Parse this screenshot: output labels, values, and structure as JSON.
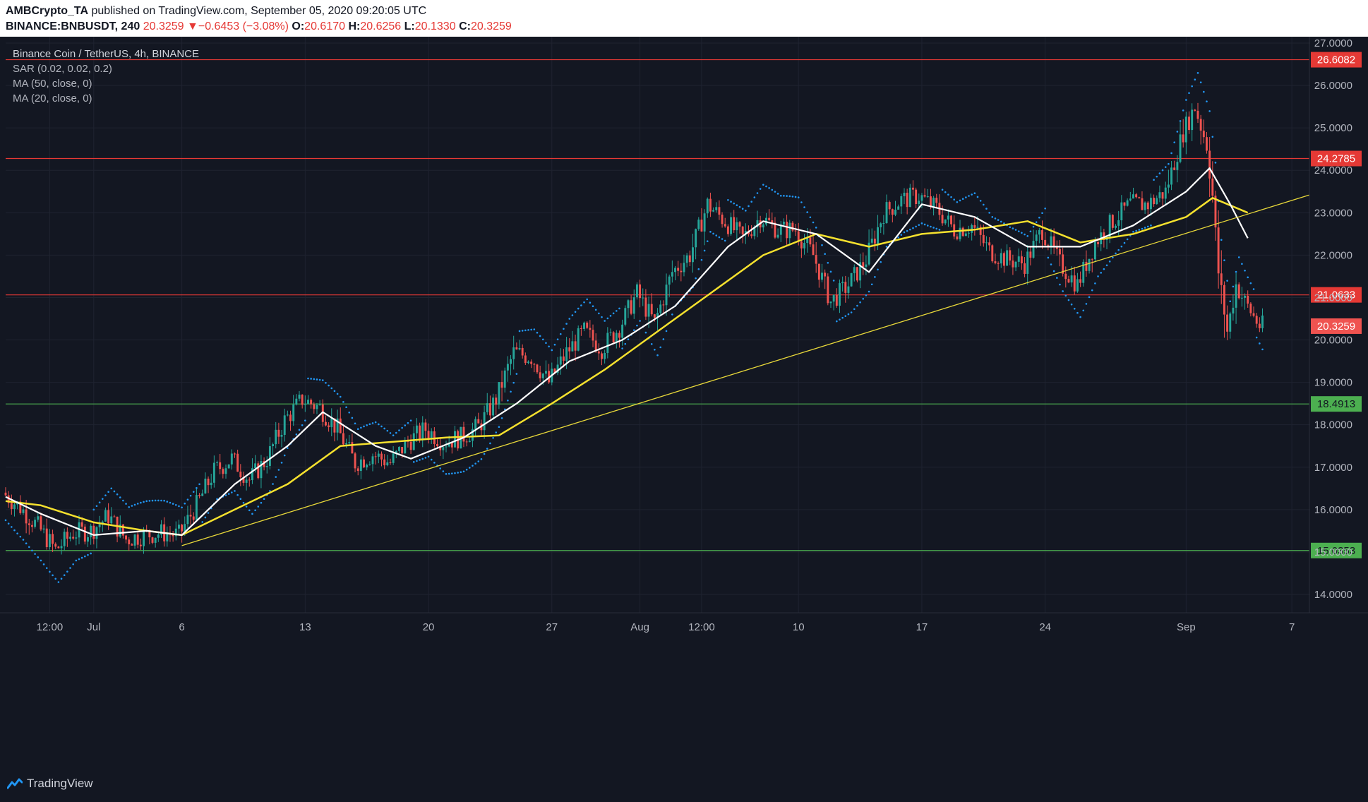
{
  "header": {
    "author": "AMBCrypto_TA",
    "published": " published on TradingView.com, September 05, 2020 09:20:05 UTC",
    "symbol": "BINANCE:BNBUSDT, 240",
    "last": "20.3259",
    "change_arrow": "▼",
    "change": "−0.6453 (−3.08%)",
    "o_label": "O:",
    "o_value": "20.6170",
    "h_label": "H:",
    "h_value": "20.6256",
    "l_label": "L:",
    "l_value": "20.1330",
    "c_label": "C:",
    "c_value": "20.3259"
  },
  "legend": {
    "title": "Binance Coin / TetherUS, 4h, BINANCE",
    "sar": "SAR (0.02, 0.02, 0.2)",
    "ma50": "MA (50, close, 0)",
    "ma20": "MA (20, close, 0)"
  },
  "footer": {
    "brand": "TradingView",
    "logo_icon": "tradingview-logo-icon"
  },
  "colors": {
    "background": "#131722",
    "grid": "#1f2330",
    "up": "#26a69a",
    "down": "#ef5350",
    "resistance": "#e53935",
    "support": "#4caf50",
    "ma50": "#f5e12e",
    "ma20": "#ffffff",
    "trendline": "#e8d83a",
    "sar": "#2196f3",
    "axis_text": "#b2b5be"
  },
  "chart_data": {
    "type": "candlestick",
    "title": "Binance Coin / TetherUS, 4h, BINANCE",
    "ylim": [
      13.7,
      27.35
    ],
    "y_ticks": [
      14,
      15,
      16,
      17,
      18,
      19,
      20,
      21,
      22,
      23,
      24,
      25,
      26,
      27
    ],
    "y_tick_labels": [
      "14.0000",
      "15.0000",
      "16.0000",
      "17.0000",
      "18.0000",
      "19.0000",
      "20.0000",
      "21.0000",
      "22.0000",
      "23.0000",
      "24.0000",
      "25.0000",
      "26.0000",
      "27.0000"
    ],
    "x_ticks": [
      {
        "label": "12:00",
        "date": "2020-06-28 12:00"
      },
      {
        "label": "Jul",
        "date": "2020-07-01"
      },
      {
        "label": "6",
        "date": "2020-07-06"
      },
      {
        "label": "13",
        "date": "2020-07-13"
      },
      {
        "label": "20",
        "date": "2020-07-20"
      },
      {
        "label": "27",
        "date": "2020-07-27"
      },
      {
        "label": "Aug",
        "date": "2020-08-01"
      },
      {
        "label": "12:00",
        "date": "2020-08-04 12:00"
      },
      {
        "label": "10",
        "date": "2020-08-10"
      },
      {
        "label": "17",
        "date": "2020-08-17"
      },
      {
        "label": "24",
        "date": "2020-08-24"
      },
      {
        "label": "Sep",
        "date": "2020-09-01"
      },
      {
        "label": "7",
        "date": "2020-09-07"
      }
    ],
    "horizontal_levels": [
      {
        "value": 26.6082,
        "label": "26.6082",
        "kind": "resistance"
      },
      {
        "value": 24.2785,
        "label": "24.2785",
        "kind": "resistance"
      },
      {
        "value": 21.0633,
        "label": "21.0633",
        "kind": "resistance"
      },
      {
        "value": 18.4913,
        "label": "18.4913",
        "kind": "support"
      },
      {
        "value": 15.0353,
        "label": "15.0353",
        "kind": "support"
      }
    ],
    "last_price": {
      "value": 20.3259,
      "label": "20.3259"
    },
    "trendline": [
      {
        "date": "2020-07-06",
        "y": 15.15
      },
      {
        "date": "2020-09-08",
        "y": 23.42
      }
    ],
    "path_points": [
      {
        "date": "2020-06-26 00:00",
        "y": 16.4
      },
      {
        "date": "2020-06-27 00:00",
        "y": 16.05
      },
      {
        "date": "2020-06-28 00:00",
        "y": 15.6
      },
      {
        "date": "2020-06-29 00:00",
        "y": 15.05
      },
      {
        "date": "2020-06-30 00:00",
        "y": 15.45
      },
      {
        "date": "2020-07-01 00:00",
        "y": 15.5
      },
      {
        "date": "2020-07-02 00:00",
        "y": 15.85
      },
      {
        "date": "2020-07-03 00:00",
        "y": 15.3
      },
      {
        "date": "2020-07-04 00:00",
        "y": 15.4
      },
      {
        "date": "2020-07-05 00:00",
        "y": 15.45
      },
      {
        "date": "2020-07-06 00:00",
        "y": 15.4
      },
      {
        "date": "2020-07-07 00:00",
        "y": 16.1
      },
      {
        "date": "2020-07-08 00:00",
        "y": 16.9
      },
      {
        "date": "2020-07-09 00:00",
        "y": 17.2
      },
      {
        "date": "2020-07-10 00:00",
        "y": 16.7
      },
      {
        "date": "2020-07-11 00:00",
        "y": 17.2
      },
      {
        "date": "2020-07-12 00:00",
        "y": 18.1
      },
      {
        "date": "2020-07-13 00:00",
        "y": 18.6
      },
      {
        "date": "2020-07-14 00:00",
        "y": 18.4
      },
      {
        "date": "2020-07-15 00:00",
        "y": 17.9
      },
      {
        "date": "2020-07-16 00:00",
        "y": 17.1
      },
      {
        "date": "2020-07-17 00:00",
        "y": 17.3
      },
      {
        "date": "2020-07-18 00:00",
        "y": 17.1
      },
      {
        "date": "2020-07-19 00:00",
        "y": 17.6
      },
      {
        "date": "2020-07-20 00:00",
        "y": 17.9
      },
      {
        "date": "2020-07-21 00:00",
        "y": 17.6
      },
      {
        "date": "2020-07-22 00:00",
        "y": 17.7
      },
      {
        "date": "2020-07-23 00:00",
        "y": 17.95
      },
      {
        "date": "2020-07-24 00:00",
        "y": 18.6
      },
      {
        "date": "2020-07-25 00:00",
        "y": 19.7
      },
      {
        "date": "2020-07-26 00:00",
        "y": 19.6
      },
      {
        "date": "2020-07-27 00:00",
        "y": 19.0
      },
      {
        "date": "2020-07-28 00:00",
        "y": 19.7
      },
      {
        "date": "2020-07-29 00:00",
        "y": 20.2
      },
      {
        "date": "2020-07-30 00:00",
        "y": 19.8
      },
      {
        "date": "2020-07-31 00:00",
        "y": 20.3
      },
      {
        "date": "2020-08-01 00:00",
        "y": 21.1
      },
      {
        "date": "2020-08-02 00:00",
        "y": 20.4
      },
      {
        "date": "2020-08-03 00:00",
        "y": 21.6
      },
      {
        "date": "2020-08-04 00:00",
        "y": 22.0
      },
      {
        "date": "2020-08-05 00:00",
        "y": 23.2
      },
      {
        "date": "2020-08-06 00:00",
        "y": 22.8
      },
      {
        "date": "2020-08-07 00:00",
        "y": 22.4
      },
      {
        "date": "2020-08-08 00:00",
        "y": 22.9
      },
      {
        "date": "2020-08-09 00:00",
        "y": 22.6
      },
      {
        "date": "2020-08-10 00:00",
        "y": 22.6
      },
      {
        "date": "2020-08-11 00:00",
        "y": 22.0
      },
      {
        "date": "2020-08-12 00:00",
        "y": 20.9
      },
      {
        "date": "2020-08-13 00:00",
        "y": 21.3
      },
      {
        "date": "2020-08-14 00:00",
        "y": 21.9
      },
      {
        "date": "2020-08-15 00:00",
        "y": 23.0
      },
      {
        "date": "2020-08-16 00:00",
        "y": 23.3
      },
      {
        "date": "2020-08-17 00:00",
        "y": 23.4
      },
      {
        "date": "2020-08-18 00:00",
        "y": 23.1
      },
      {
        "date": "2020-08-19 00:00",
        "y": 22.6
      },
      {
        "date": "2020-08-20 00:00",
        "y": 22.7
      },
      {
        "date": "2020-08-21 00:00",
        "y": 22.1
      },
      {
        "date": "2020-08-22 00:00",
        "y": 21.9
      },
      {
        "date": "2020-08-23 00:00",
        "y": 21.8
      },
      {
        "date": "2020-08-24 00:00",
        "y": 22.6
      },
      {
        "date": "2020-08-25 00:00",
        "y": 21.8
      },
      {
        "date": "2020-08-26 00:00",
        "y": 21.3
      },
      {
        "date": "2020-08-27 00:00",
        "y": 22.3
      },
      {
        "date": "2020-08-28 00:00",
        "y": 22.8
      },
      {
        "date": "2020-08-29 00:00",
        "y": 23.2
      },
      {
        "date": "2020-08-30 00:00",
        "y": 23.2
      },
      {
        "date": "2020-08-31 00:00",
        "y": 23.5
      },
      {
        "date": "2020-09-01 00:00",
        "y": 24.9
      },
      {
        "date": "2020-09-01 16:00",
        "y": 25.5
      },
      {
        "date": "2020-09-02 08:00",
        "y": 24.6
      },
      {
        "date": "2020-09-02 16:00",
        "y": 23.4
      },
      {
        "date": "2020-09-03 00:00",
        "y": 21.6
      },
      {
        "date": "2020-09-03 12:00",
        "y": 20.2
      },
      {
        "date": "2020-09-04 00:00",
        "y": 21.3
      },
      {
        "date": "2020-09-04 12:00",
        "y": 20.9
      },
      {
        "date": "2020-09-05 08:00",
        "y": 20.33
      }
    ],
    "ma50_points": [
      {
        "date": "2020-06-26",
        "y": 16.2
      },
      {
        "date": "2020-06-28",
        "y": 16.1
      },
      {
        "date": "2020-07-01",
        "y": 15.7
      },
      {
        "date": "2020-07-04",
        "y": 15.5
      },
      {
        "date": "2020-07-06",
        "y": 15.4
      },
      {
        "date": "2020-07-09",
        "y": 16.0
      },
      {
        "date": "2020-07-12",
        "y": 16.6
      },
      {
        "date": "2020-07-15",
        "y": 17.5
      },
      {
        "date": "2020-07-18",
        "y": 17.6
      },
      {
        "date": "2020-07-21",
        "y": 17.7
      },
      {
        "date": "2020-07-24",
        "y": 17.75
      },
      {
        "date": "2020-07-27",
        "y": 18.5
      },
      {
        "date": "2020-07-30",
        "y": 19.3
      },
      {
        "date": "2020-08-02",
        "y": 20.2
      },
      {
        "date": "2020-08-05",
        "y": 21.1
      },
      {
        "date": "2020-08-08",
        "y": 22.0
      },
      {
        "date": "2020-08-11",
        "y": 22.5
      },
      {
        "date": "2020-08-14",
        "y": 22.2
      },
      {
        "date": "2020-08-17",
        "y": 22.5
      },
      {
        "date": "2020-08-20",
        "y": 22.6
      },
      {
        "date": "2020-08-23",
        "y": 22.8
      },
      {
        "date": "2020-08-26",
        "y": 22.3
      },
      {
        "date": "2020-08-29",
        "y": 22.5
      },
      {
        "date": "2020-09-01",
        "y": 22.9
      },
      {
        "date": "2020-09-02 12:00",
        "y": 23.35
      },
      {
        "date": "2020-09-04 12:00",
        "y": 23.0
      }
    ],
    "ma20_points": [
      {
        "date": "2020-06-26",
        "y": 16.3
      },
      {
        "date": "2020-06-28",
        "y": 15.9
      },
      {
        "date": "2020-07-01",
        "y": 15.4
      },
      {
        "date": "2020-07-04",
        "y": 15.5
      },
      {
        "date": "2020-07-06",
        "y": 15.4
      },
      {
        "date": "2020-07-09",
        "y": 16.6
      },
      {
        "date": "2020-07-12",
        "y": 17.5
      },
      {
        "date": "2020-07-14",
        "y": 18.3
      },
      {
        "date": "2020-07-17",
        "y": 17.5
      },
      {
        "date": "2020-07-19",
        "y": 17.2
      },
      {
        "date": "2020-07-22",
        "y": 17.7
      },
      {
        "date": "2020-07-25",
        "y": 18.5
      },
      {
        "date": "2020-07-28",
        "y": 19.5
      },
      {
        "date": "2020-07-31",
        "y": 20.0
      },
      {
        "date": "2020-08-03",
        "y": 20.8
      },
      {
        "date": "2020-08-06",
        "y": 22.2
      },
      {
        "date": "2020-08-08",
        "y": 22.8
      },
      {
        "date": "2020-08-11",
        "y": 22.5
      },
      {
        "date": "2020-08-14",
        "y": 21.6
      },
      {
        "date": "2020-08-17",
        "y": 23.2
      },
      {
        "date": "2020-08-20",
        "y": 22.9
      },
      {
        "date": "2020-08-23",
        "y": 22.2
      },
      {
        "date": "2020-08-26",
        "y": 22.2
      },
      {
        "date": "2020-08-29",
        "y": 22.7
      },
      {
        "date": "2020-09-01",
        "y": 23.5
      },
      {
        "date": "2020-09-02 08:00",
        "y": 24.05
      },
      {
        "date": "2020-09-03 12:00",
        "y": 23.2
      },
      {
        "date": "2020-09-04 12:00",
        "y": 22.4
      }
    ]
  }
}
